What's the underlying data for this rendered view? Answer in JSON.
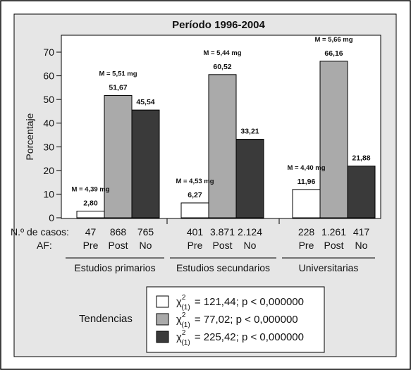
{
  "chart_data": {
    "type": "bar",
    "title": "Período 1996-2004",
    "ylabel": "Porcentaje",
    "ylim": [
      0,
      70
    ],
    "yticks": [
      0,
      10,
      20,
      30,
      40,
      50,
      60,
      70
    ],
    "colors": {
      "Pre": "#ffffff",
      "Post": "#aaaaaa",
      "No": "#3a3a3a"
    },
    "groups": [
      {
        "name": "Estudios primarios",
        "bars": [
          {
            "af": "Pre",
            "cases": "47",
            "value": 2.8,
            "label": "2,80",
            "mean": "M = 4,39 mg"
          },
          {
            "af": "Post",
            "cases": "868",
            "value": 51.67,
            "label": "51,67",
            "mean": "M = 5,51 mg"
          },
          {
            "af": "No",
            "cases": "765",
            "value": 45.54,
            "label": "45,54",
            "mean": ""
          }
        ]
      },
      {
        "name": "Estudios secundarios",
        "bars": [
          {
            "af": "Pre",
            "cases": "401",
            "value": 6.27,
            "label": "6,27",
            "mean": "M = 4,53 mg"
          },
          {
            "af": "Post",
            "cases": "3.871",
            "value": 60.52,
            "label": "60,52",
            "mean": "M = 5,44 mg"
          },
          {
            "af": "No",
            "cases": "2.124",
            "value": 33.21,
            "label": "33,21",
            "mean": ""
          }
        ]
      },
      {
        "name": "Universitarias",
        "bars": [
          {
            "af": "Pre",
            "cases": "228",
            "value": 11.96,
            "label": "11,96",
            "mean": "M = 4,40 mg"
          },
          {
            "af": "Post",
            "cases": "1.261",
            "value": 66.16,
            "label": "66,16",
            "mean": "M = 5,66 mg"
          },
          {
            "af": "No",
            "cases": "417",
            "value": 21.88,
            "label": "21,88",
            "mean": ""
          }
        ]
      }
    ],
    "row_labels": {
      "cases": "N.º de casos:",
      "af": "AF:"
    },
    "legend": {
      "title": "Tendencias",
      "entries": [
        {
          "af": "Pre",
          "value": "= 121,44; p < 0,000000"
        },
        {
          "af": "Post",
          "value": "=   77,02; p < 0,000000"
        },
        {
          "af": "No",
          "value": "= 225,42; p < 0,000000"
        }
      ],
      "stat_symbol": "χ",
      "stat_sup": "2",
      "stat_sub": "(1)"
    }
  }
}
